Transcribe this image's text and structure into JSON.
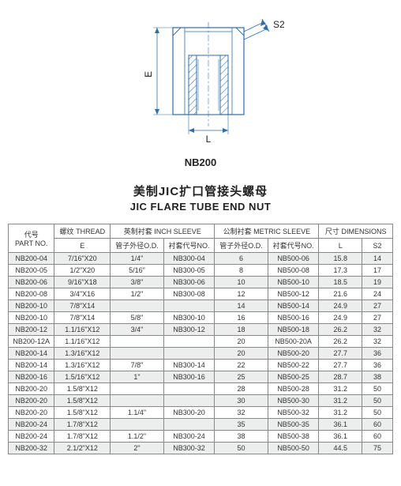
{
  "diagram": {
    "label_E": "E",
    "label_L": "L",
    "label_S2": "S2",
    "stroke": "#2a6fb0",
    "hatch": "#2a6fb0",
    "dim_color": "#2a6fb0"
  },
  "part_label": "NB200",
  "title_cn": "美制JIC扩口管接头螺母",
  "title_en": "JIC FLARE TUBE END NUT",
  "table": {
    "headers_top": {
      "partno_cn": "代号",
      "partno_en": "PART NO.",
      "thread_cn": "螺纹",
      "thread_en": "THREAD",
      "inch_cn": "英制衬套",
      "inch_en": "INCH SLEEVE",
      "metric_cn": "公制衬套",
      "metric_en": "METRIC SLEEVE",
      "dim_cn": "尺寸",
      "dim_en": "DIMENSIONS"
    },
    "headers_sub": {
      "E": "E",
      "inch_od": "管子外径O.D.",
      "inch_no": "衬套代号NO.",
      "metric_od": "管子外径O.D.",
      "metric_no": "衬套代号NO.",
      "L": "L",
      "S2": "S2"
    },
    "rows": [
      [
        "NB200-04",
        "7/16\"X20",
        "1/4\"",
        "NB300-04",
        "6",
        "NB500-06",
        "15.8",
        "14"
      ],
      [
        "NB200-05",
        "1/2\"X20",
        "5/16\"",
        "NB300-05",
        "8",
        "NB500-08",
        "17.3",
        "17"
      ],
      [
        "NB200-06",
        "9/16\"X18",
        "3/8\"",
        "NB300-06",
        "10",
        "NB500-10",
        "18.5",
        "19"
      ],
      [
        "NB200-08",
        "3/4\"X16",
        "1/2\"",
        "NB300-08",
        "12",
        "NB500-12",
        "21.6",
        "24"
      ],
      [
        "NB200-10",
        "7/8\"X14",
        "",
        "",
        "14",
        "NB500-14",
        "24.9",
        "27"
      ],
      [
        "NB200-10",
        "7/8\"X14",
        "5/8\"",
        "NB300-10",
        "16",
        "NB500-16",
        "24.9",
        "27"
      ],
      [
        "NB200-12",
        "1.1/16\"X12",
        "3/4\"",
        "NB300-12",
        "18",
        "NB500-18",
        "26.2",
        "32"
      ],
      [
        "NB200-12A",
        "1.1/16\"X12",
        "",
        "",
        "20",
        "NB500-20A",
        "26.2",
        "32"
      ],
      [
        "NB200-14",
        "1.3/16\"X12",
        "",
        "",
        "20",
        "NB500-20",
        "27.7",
        "36"
      ],
      [
        "NB200-14",
        "1.3/16\"X12",
        "7/8\"",
        "NB300-14",
        "22",
        "NB500-22",
        "27.7",
        "36"
      ],
      [
        "NB200-16",
        "1.5/16\"X12",
        "1\"",
        "NB300-16",
        "25",
        "NB500-25",
        "28.7",
        "38"
      ],
      [
        "NB200-20",
        "1.5/8\"X12",
        "",
        "",
        "28",
        "NB500-28",
        "31.2",
        "50"
      ],
      [
        "NB200-20",
        "1.5/8\"X12",
        "",
        "",
        "30",
        "NB500-30",
        "31.2",
        "50"
      ],
      [
        "NB200-20",
        "1.5/8\"X12",
        "1.1/4\"",
        "NB300-20",
        "32",
        "NB500-32",
        "31.2",
        "50"
      ],
      [
        "NB200-24",
        "1.7/8\"X12",
        "",
        "",
        "35",
        "NB500-35",
        "36.1",
        "60"
      ],
      [
        "NB200-24",
        "1.7/8\"X12",
        "1.1/2\"",
        "NB300-24",
        "38",
        "NB500-38",
        "36.1",
        "60"
      ],
      [
        "NB200-32",
        "2.1/2\"X12",
        "2\"",
        "NB300-32",
        "50",
        "NB500-50",
        "44.5",
        "75"
      ]
    ]
  }
}
